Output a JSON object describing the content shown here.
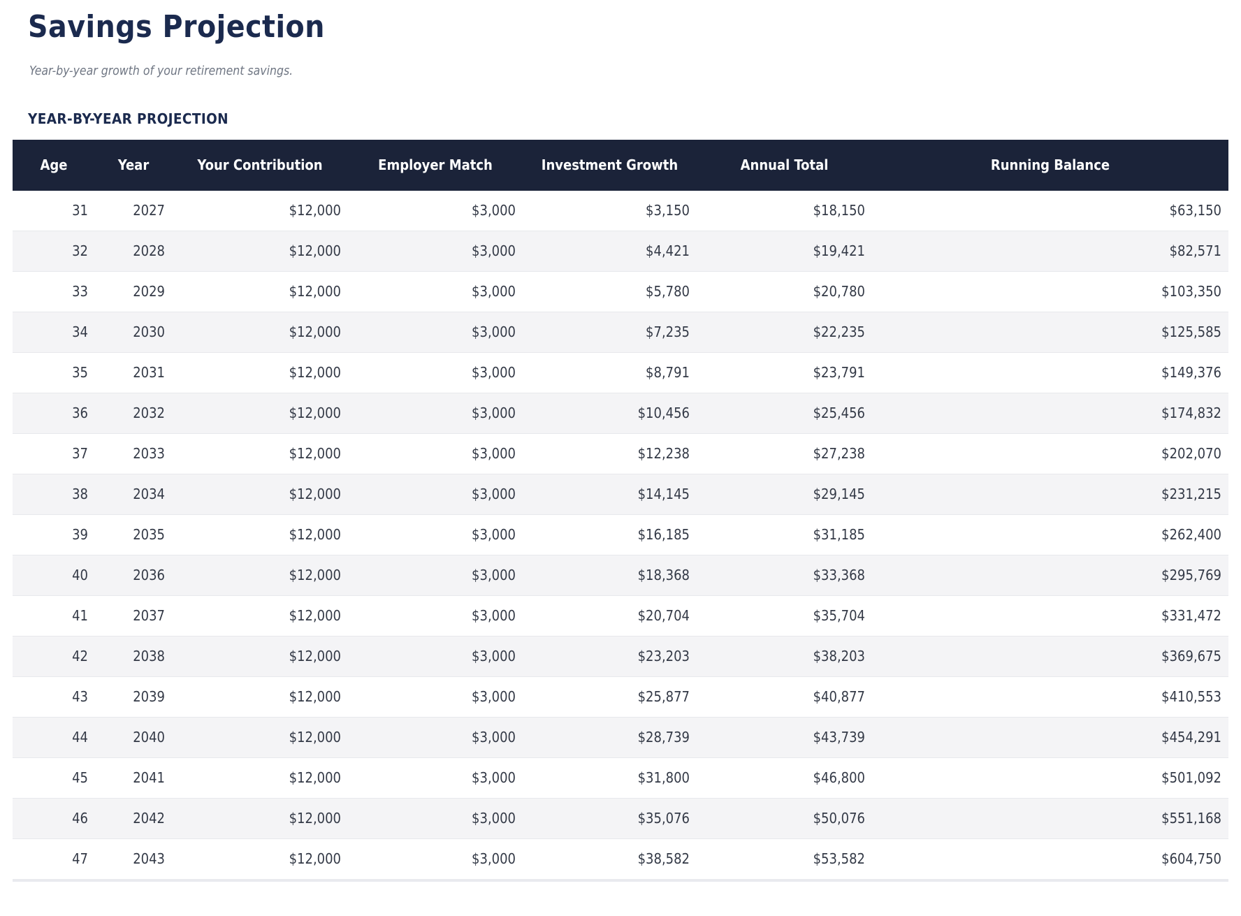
{
  "header": {
    "title": "Savings Projection",
    "subtitle": "Year-by-year growth of your retirement savings."
  },
  "section": {
    "label": "YEAR-BY-YEAR PROJECTION"
  },
  "colors": {
    "title_navy": "#1b2a4e",
    "table_header_bg": "#1b2339",
    "table_header_text": "#ffffff",
    "row_alt_bg": "#f4f4f6",
    "row_border": "#e7e8ec",
    "body_text": "#333946",
    "subtitle_gray": "#6f7683"
  },
  "table": {
    "columns": [
      {
        "key": "age",
        "label": "Age"
      },
      {
        "key": "year",
        "label": "Year"
      },
      {
        "key": "your_contribution",
        "label": "Your Contribution"
      },
      {
        "key": "employer_match",
        "label": "Employer Match"
      },
      {
        "key": "investment_growth",
        "label": "Investment Growth"
      },
      {
        "key": "annual_total",
        "label": "Annual Total"
      },
      {
        "key": "running_balance",
        "label": "Running Balance"
      }
    ],
    "rows": [
      {
        "age": "31",
        "year": "2027",
        "your_contribution": "$12,000",
        "employer_match": "$3,000",
        "investment_growth": "$3,150",
        "annual_total": "$18,150",
        "running_balance": "$63,150"
      },
      {
        "age": "32",
        "year": "2028",
        "your_contribution": "$12,000",
        "employer_match": "$3,000",
        "investment_growth": "$4,421",
        "annual_total": "$19,421",
        "running_balance": "$82,571"
      },
      {
        "age": "33",
        "year": "2029",
        "your_contribution": "$12,000",
        "employer_match": "$3,000",
        "investment_growth": "$5,780",
        "annual_total": "$20,780",
        "running_balance": "$103,350"
      },
      {
        "age": "34",
        "year": "2030",
        "your_contribution": "$12,000",
        "employer_match": "$3,000",
        "investment_growth": "$7,235",
        "annual_total": "$22,235",
        "running_balance": "$125,585"
      },
      {
        "age": "35",
        "year": "2031",
        "your_contribution": "$12,000",
        "employer_match": "$3,000",
        "investment_growth": "$8,791",
        "annual_total": "$23,791",
        "running_balance": "$149,376"
      },
      {
        "age": "36",
        "year": "2032",
        "your_contribution": "$12,000",
        "employer_match": "$3,000",
        "investment_growth": "$10,456",
        "annual_total": "$25,456",
        "running_balance": "$174,832"
      },
      {
        "age": "37",
        "year": "2033",
        "your_contribution": "$12,000",
        "employer_match": "$3,000",
        "investment_growth": "$12,238",
        "annual_total": "$27,238",
        "running_balance": "$202,070"
      },
      {
        "age": "38",
        "year": "2034",
        "your_contribution": "$12,000",
        "employer_match": "$3,000",
        "investment_growth": "$14,145",
        "annual_total": "$29,145",
        "running_balance": "$231,215"
      },
      {
        "age": "39",
        "year": "2035",
        "your_contribution": "$12,000",
        "employer_match": "$3,000",
        "investment_growth": "$16,185",
        "annual_total": "$31,185",
        "running_balance": "$262,400"
      },
      {
        "age": "40",
        "year": "2036",
        "your_contribution": "$12,000",
        "employer_match": "$3,000",
        "investment_growth": "$18,368",
        "annual_total": "$33,368",
        "running_balance": "$295,769"
      },
      {
        "age": "41",
        "year": "2037",
        "your_contribution": "$12,000",
        "employer_match": "$3,000",
        "investment_growth": "$20,704",
        "annual_total": "$35,704",
        "running_balance": "$331,472"
      },
      {
        "age": "42",
        "year": "2038",
        "your_contribution": "$12,000",
        "employer_match": "$3,000",
        "investment_growth": "$23,203",
        "annual_total": "$38,203",
        "running_balance": "$369,675"
      },
      {
        "age": "43",
        "year": "2039",
        "your_contribution": "$12,000",
        "employer_match": "$3,000",
        "investment_growth": "$25,877",
        "annual_total": "$40,877",
        "running_balance": "$410,553"
      },
      {
        "age": "44",
        "year": "2040",
        "your_contribution": "$12,000",
        "employer_match": "$3,000",
        "investment_growth": "$28,739",
        "annual_total": "$43,739",
        "running_balance": "$454,291"
      },
      {
        "age": "45",
        "year": "2041",
        "your_contribution": "$12,000",
        "employer_match": "$3,000",
        "investment_growth": "$31,800",
        "annual_total": "$46,800",
        "running_balance": "$501,092"
      },
      {
        "age": "46",
        "year": "2042",
        "your_contribution": "$12,000",
        "employer_match": "$3,000",
        "investment_growth": "$35,076",
        "annual_total": "$50,076",
        "running_balance": "$551,168"
      },
      {
        "age": "47",
        "year": "2043",
        "your_contribution": "$12,000",
        "employer_match": "$3,000",
        "investment_growth": "$38,582",
        "annual_total": "$53,582",
        "running_balance": "$604,750"
      }
    ]
  }
}
